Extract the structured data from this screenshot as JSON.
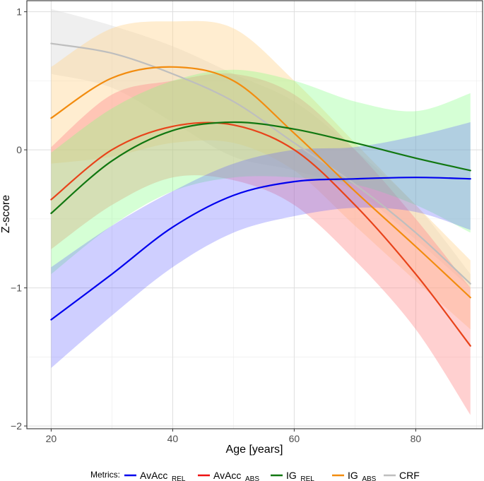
{
  "chart_data": {
    "type": "line",
    "xlabel": "Age [years]",
    "ylabel": "Z-score",
    "xlim": [
      16,
      91
    ],
    "ylim": [
      -2.02,
      1.08
    ],
    "x_ticks": [
      20,
      40,
      60,
      80
    ],
    "x_tick_labels": [
      "20",
      "40",
      "60",
      "80"
    ],
    "y_ticks": [
      1,
      0,
      -1,
      -2
    ],
    "y_tick_labels": [
      "1",
      "0",
      "−1",
      "−2"
    ],
    "grid": true,
    "legend": {
      "title": "Metrics:",
      "position": "bottom",
      "entries": [
        {
          "base": "AvAcc",
          "sub": "_REL",
          "color": "#0000ee"
        },
        {
          "base": "AvAcc",
          "sub": "_ABS",
          "color": "#ee1111"
        },
        {
          "base": "IG",
          "sub": "_REL",
          "color": "#117711"
        },
        {
          "base": "IG",
          "sub": "_ABS",
          "color": "#f28c0f"
        },
        {
          "base": "CRF",
          "sub": "",
          "color": "#bebebe"
        }
      ]
    },
    "series": [
      {
        "name": "CRF",
        "color": "#bebebe",
        "band_color": "#d9d9d9",
        "band_opacity": 0.42,
        "x": [
          20,
          30,
          40,
          50,
          60,
          70,
          80,
          89
        ],
        "mean": [
          0.77,
          0.7,
          0.55,
          0.35,
          0.05,
          -0.25,
          -0.6,
          -0.97
        ],
        "lower": [
          0.55,
          0.45,
          0.2,
          -0.05,
          -0.15,
          -0.3,
          -0.65,
          -1.0
        ],
        "upper": [
          1.02,
          0.9,
          0.75,
          0.55,
          0.35,
          0.0,
          -0.4,
          -0.9
        ]
      },
      {
        "name": "IG_ABS",
        "color": "#f28c0f",
        "band_color": "#ffd38f",
        "band_opacity": 0.42,
        "x": [
          20,
          30,
          40,
          50,
          60,
          70,
          80,
          89
        ],
        "mean": [
          0.23,
          0.52,
          0.6,
          0.5,
          0.12,
          -0.3,
          -0.7,
          -1.07
        ],
        "lower": [
          -0.1,
          -0.05,
          0.05,
          0.05,
          -0.15,
          -0.55,
          -0.95,
          -1.3
        ],
        "upper": [
          0.6,
          0.88,
          0.93,
          0.88,
          0.5,
          0.05,
          -0.4,
          -0.8
        ]
      },
      {
        "name": "AvAcc_ABS",
        "color": "#e8431a",
        "band_color": "#ff8f8f",
        "band_opacity": 0.42,
        "x": [
          20,
          30,
          40,
          50,
          60,
          70,
          80,
          89
        ],
        "mean": [
          -0.36,
          0.0,
          0.17,
          0.18,
          0.0,
          -0.4,
          -0.9,
          -1.42
        ],
        "lower": [
          -0.72,
          -0.4,
          -0.2,
          -0.22,
          -0.4,
          -0.8,
          -1.3,
          -1.92
        ],
        "upper": [
          0.02,
          0.4,
          0.5,
          0.55,
          0.4,
          0.0,
          -0.5,
          -1.0
        ]
      },
      {
        "name": "IG_REL",
        "color": "#117711",
        "band_color": "#80ff80",
        "band_opacity": 0.33,
        "x": [
          20,
          30,
          40,
          50,
          60,
          70,
          80,
          89
        ],
        "mean": [
          -0.46,
          -0.08,
          0.14,
          0.2,
          0.15,
          0.05,
          -0.06,
          -0.15
        ],
        "lower": [
          -0.9,
          -0.55,
          -0.3,
          -0.2,
          -0.2,
          -0.25,
          -0.4,
          -0.6
        ],
        "upper": [
          -0.02,
          0.3,
          0.5,
          0.58,
          0.5,
          0.35,
          0.28,
          0.41
        ]
      },
      {
        "name": "AvAcc_REL",
        "color": "#0000ee",
        "band_color": "#5f5fff",
        "band_opacity": 0.3,
        "x": [
          20,
          30,
          40,
          50,
          60,
          70,
          80,
          89
        ],
        "mean": [
          -1.23,
          -0.9,
          -0.56,
          -0.33,
          -0.23,
          -0.21,
          -0.2,
          -0.21
        ],
        "lower": [
          -1.58,
          -1.2,
          -0.85,
          -0.6,
          -0.48,
          -0.42,
          -0.45,
          -0.58
        ],
        "upper": [
          -0.85,
          -0.55,
          -0.3,
          -0.1,
          0.0,
          0.02,
          0.1,
          0.2
        ]
      }
    ]
  }
}
